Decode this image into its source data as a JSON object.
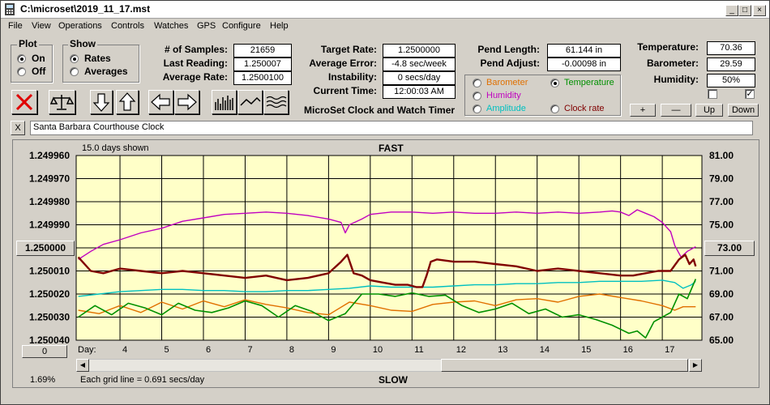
{
  "window": {
    "title": "C:\\microset\\2019_11_17.mst"
  },
  "menu": [
    "File",
    "View",
    "Operations",
    "Controls",
    "Watches",
    "GPS",
    "Configure",
    "Help"
  ],
  "plot_group": {
    "title": "Plot",
    "on": "On",
    "off": "Off",
    "selected": "On"
  },
  "show_group": {
    "title": "Show",
    "rates": "Rates",
    "averages": "Averages",
    "selected": "Rates"
  },
  "stats": {
    "samples_label": "# of Samples:",
    "samples": "21659",
    "last_label": "Last Reading:",
    "last": "1.250007",
    "avg_rate_label": "Average Rate:",
    "avg_rate": "1.2500100",
    "target_label": "Target Rate:",
    "target": "1.2500000",
    "avg_err_label": "Average Error:",
    "avg_err": "-4.8 sec/week",
    "instab_label": "Instability:",
    "instab": "0 secs/day",
    "time_label": "Current Time:",
    "time": "12:00:03 AM",
    "pend_len_label": "Pend Length:",
    "pend_len": "61.144 in",
    "pend_adj_label": "Pend Adjust:",
    "pend_adj": "-0.00098 in",
    "temp_label": "Temperature:",
    "temp": "70.36",
    "baro_label": "Barometer:",
    "baro": "29.59",
    "hum_label": "Humidity:",
    "hum": "50%"
  },
  "app_caption": "MicroSet Clock and Watch Timer",
  "sensor_options": {
    "barometer": "Barometer",
    "temperature": "Temperature",
    "humidity": "Humidity",
    "amplitude": "Amplitude",
    "clock_rate": "Clock rate",
    "selected": "Temperature",
    "colors": {
      "barometer": "#e07000",
      "temperature": "#009000",
      "humidity": "#c000c0",
      "amplitude": "#00c0c0",
      "clock_rate": "#800000"
    }
  },
  "adjust_buttons": {
    "plus": "+",
    "minus": "—",
    "up": "Up",
    "down": "Down"
  },
  "clock_name": "Santa Barbara Courthouse Clock",
  "close_x": "X",
  "graph": {
    "days_shown": "15.0 days shown",
    "top_label": "FAST",
    "bottom_label": "SLOW",
    "grid_note": "Each grid line = 0.691 secs/day",
    "left_pct": "1.69%",
    "left_center_button": "1.250000",
    "right_center_button": "73.00",
    "zero_button": "0",
    "day_label": "Day:",
    "bg_color": "#ffffc8"
  },
  "chart_data": {
    "type": "line",
    "x_label": "Day",
    "x_ticks": [
      4,
      5,
      6,
      7,
      8,
      9,
      10,
      11,
      12,
      13,
      14,
      15,
      16,
      17
    ],
    "xlim": [
      2.95,
      17.95
    ],
    "y_left_ticks": [
      "1.249960",
      "1.249970",
      "1.249980",
      "1.249990",
      "1.250000",
      "1.250010",
      "1.250020",
      "1.250030",
      "1.250040"
    ],
    "y_left_lim": [
      1.24996,
      1.25004
    ],
    "y_left_inverted": true,
    "y_right_ticks": [
      "81.00",
      "79.00",
      "77.00",
      "75.00",
      "73.00",
      "71.00",
      "69.00",
      "67.00",
      "65.00"
    ],
    "y_right_lim": [
      65,
      81
    ],
    "grid": true,
    "series": [
      {
        "name": "Clock rate",
        "color": "#800000",
        "axis": "left",
        "width": 2.4,
        "x": [
          3.0,
          3.3,
          3.6,
          4.0,
          4.5,
          5.0,
          5.5,
          6.0,
          6.5,
          7.0,
          7.5,
          8.0,
          8.5,
          9.0,
          9.3,
          9.45,
          9.6,
          9.8,
          10.0,
          10.3,
          10.6,
          10.9,
          11.1,
          11.25,
          11.35,
          11.45,
          11.6,
          12.0,
          12.5,
          13.0,
          13.5,
          14.0,
          14.5,
          15.0,
          15.5,
          16.0,
          16.3,
          16.6,
          16.9,
          17.2,
          17.4,
          17.55,
          17.65,
          17.75,
          17.8
        ],
        "y": [
          1.250004,
          1.25001,
          1.250011,
          1.250009,
          1.25001,
          1.250011,
          1.25001,
          1.250011,
          1.250012,
          1.250013,
          1.250012,
          1.250014,
          1.250013,
          1.250011,
          1.250006,
          1.250003,
          1.250011,
          1.250012,
          1.250014,
          1.250015,
          1.250016,
          1.250016,
          1.250017,
          1.250017,
          1.250012,
          1.250006,
          1.250005,
          1.250006,
          1.250006,
          1.250007,
          1.250008,
          1.25001,
          1.250009,
          1.25001,
          1.250011,
          1.250012,
          1.250012,
          1.250011,
          1.25001,
          1.25001,
          1.250005,
          1.250003,
          1.250007,
          1.250005,
          1.250008
        ]
      },
      {
        "name": "Humidity",
        "color": "#c000c0",
        "axis": "right",
        "width": 1.4,
        "x": [
          3.0,
          3.3,
          3.6,
          4.0,
          4.5,
          5.0,
          5.5,
          6.0,
          6.5,
          7.0,
          7.5,
          8.0,
          8.5,
          9.0,
          9.3,
          9.4,
          9.5,
          9.8,
          10.0,
          10.5,
          11.0,
          11.5,
          12.0,
          12.5,
          13.0,
          13.5,
          14.0,
          14.5,
          15.0,
          15.5,
          15.8,
          16.0,
          16.2,
          16.4,
          16.6,
          16.8,
          17.0,
          17.2,
          17.3,
          17.45,
          17.6,
          17.8
        ],
        "y": [
          72.0,
          72.7,
          73.3,
          73.7,
          74.3,
          74.7,
          75.3,
          75.6,
          75.9,
          76.0,
          76.1,
          76.0,
          75.8,
          75.5,
          75.2,
          74.3,
          75.0,
          75.5,
          75.9,
          76.1,
          76.1,
          76.0,
          76.1,
          76.0,
          76.0,
          76.1,
          76.0,
          76.1,
          76.0,
          76.1,
          76.2,
          76.1,
          75.8,
          76.3,
          76.0,
          75.7,
          75.2,
          74.4,
          73.2,
          72.2,
          72.7,
          73.1
        ]
      },
      {
        "name": "Amplitude",
        "color": "#00c0c0",
        "axis": "right",
        "width": 1.4,
        "x": [
          3.0,
          3.5,
          4.0,
          4.5,
          5.0,
          5.5,
          6.0,
          6.5,
          7.0,
          7.5,
          8.0,
          8.5,
          9.0,
          9.5,
          10.0,
          10.5,
          11.0,
          11.5,
          12.0,
          12.5,
          13.0,
          13.5,
          14.0,
          14.5,
          15.0,
          15.5,
          16.0,
          16.5,
          17.0,
          17.3,
          17.5,
          17.7,
          17.8
        ],
        "y": [
          68.8,
          69.0,
          69.2,
          69.3,
          69.4,
          69.4,
          69.3,
          69.3,
          69.2,
          69.2,
          69.3,
          69.3,
          69.4,
          69.5,
          69.7,
          69.6,
          69.6,
          69.6,
          69.7,
          69.8,
          69.8,
          69.9,
          69.9,
          70.0,
          70.0,
          70.1,
          70.1,
          70.1,
          70.2,
          70.0,
          69.5,
          69.8,
          70.1
        ]
      },
      {
        "name": "Barometer",
        "color": "#e07000",
        "axis": "right",
        "width": 1.4,
        "x": [
          3.0,
          3.5,
          4.0,
          4.5,
          5.0,
          5.5,
          6.0,
          6.5,
          7.0,
          7.5,
          8.0,
          8.5,
          9.0,
          9.5,
          10.0,
          10.5,
          11.0,
          11.5,
          12.0,
          12.5,
          13.0,
          13.5,
          14.0,
          14.5,
          15.0,
          15.5,
          16.0,
          16.5,
          17.0,
          17.3,
          17.5,
          17.8
        ],
        "y": [
          67.6,
          67.3,
          68.0,
          67.4,
          68.3,
          67.7,
          68.4,
          67.9,
          68.5,
          68.1,
          67.8,
          67.4,
          67.2,
          68.3,
          68.0,
          67.6,
          67.5,
          68.1,
          68.3,
          68.4,
          68.0,
          68.5,
          68.6,
          68.3,
          68.8,
          69.0,
          68.7,
          68.4,
          68.0,
          67.6,
          67.9,
          67.9
        ]
      },
      {
        "name": "Temperature",
        "color": "#009000",
        "axis": "right",
        "width": 1.6,
        "x": [
          3.0,
          3.4,
          3.8,
          4.2,
          4.6,
          5.0,
          5.4,
          5.8,
          6.2,
          6.6,
          7.0,
          7.4,
          7.8,
          8.2,
          8.6,
          9.0,
          9.4,
          9.8,
          10.2,
          10.6,
          11.0,
          11.4,
          11.8,
          12.2,
          12.6,
          13.0,
          13.4,
          13.8,
          14.2,
          14.6,
          15.0,
          15.4,
          15.8,
          16.2,
          16.4,
          16.6,
          16.8,
          17.0,
          17.2,
          17.4,
          17.6,
          17.8
        ],
        "y": [
          67.0,
          68.0,
          67.2,
          68.2,
          67.8,
          67.2,
          68.2,
          67.6,
          67.4,
          67.8,
          68.4,
          68.0,
          67.0,
          68.0,
          67.5,
          66.7,
          67.3,
          69.0,
          69.0,
          68.8,
          69.1,
          68.8,
          68.9,
          68.0,
          67.4,
          67.7,
          68.2,
          67.3,
          67.7,
          67.0,
          67.2,
          66.8,
          66.3,
          65.6,
          65.8,
          65.2,
          66.6,
          67.0,
          67.4,
          69.0,
          68.6,
          70.3
        ]
      }
    ]
  }
}
